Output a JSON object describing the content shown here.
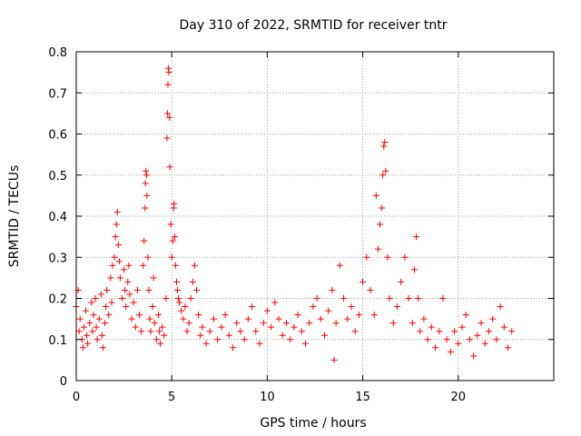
{
  "chart_data": {
    "type": "scatter",
    "title": "Day 310 of 2022, SRMTID for receiver tntr",
    "xlabel": "GPS time / hours",
    "ylabel": "SRMTID / TECUs",
    "xlim": [
      0,
      25
    ],
    "ylim": [
      0,
      0.8
    ],
    "xticks": [
      0,
      5,
      10,
      15,
      20
    ],
    "xtick_labels": [
      "0",
      "5",
      "10",
      "15",
      "20"
    ],
    "yticks": [
      0,
      0.1,
      0.2,
      0.3,
      0.4,
      0.5,
      0.6,
      0.7,
      0.8
    ],
    "ytick_labels": [
      "0",
      "0.1",
      "0.2",
      "0.3",
      "0.4",
      "0.5",
      "0.6",
      "0.7",
      "0.8"
    ],
    "grid": true,
    "marker": "plus",
    "color": "#ff0000",
    "series": [
      {
        "name": "SRMTID",
        "points": [
          [
            0.0,
            0.18
          ],
          [
            0.1,
            0.22
          ],
          [
            0.15,
            0.12
          ],
          [
            0.2,
            0.15
          ],
          [
            0.3,
            0.1
          ],
          [
            0.35,
            0.08
          ],
          [
            0.4,
            0.13
          ],
          [
            0.5,
            0.17
          ],
          [
            0.55,
            0.11
          ],
          [
            0.6,
            0.09
          ],
          [
            0.7,
            0.14
          ],
          [
            0.8,
            0.19
          ],
          [
            0.85,
            0.12
          ],
          [
            0.9,
            0.16
          ],
          [
            1.0,
            0.2
          ],
          [
            1.05,
            0.13
          ],
          [
            1.1,
            0.1
          ],
          [
            1.2,
            0.15
          ],
          [
            1.3,
            0.21
          ],
          [
            1.35,
            0.11
          ],
          [
            1.4,
            0.08
          ],
          [
            1.5,
            0.14
          ],
          [
            1.55,
            0.18
          ],
          [
            1.6,
            0.22
          ],
          [
            1.7,
            0.16
          ],
          [
            1.8,
            0.25
          ],
          [
            1.85,
            0.19
          ],
          [
            1.9,
            0.28
          ],
          [
            2.0,
            0.3
          ],
          [
            2.05,
            0.35
          ],
          [
            2.1,
            0.38
          ],
          [
            2.15,
            0.41
          ],
          [
            2.2,
            0.33
          ],
          [
            2.25,
            0.29
          ],
          [
            2.3,
            0.25
          ],
          [
            2.4,
            0.2
          ],
          [
            2.5,
            0.27
          ],
          [
            2.55,
            0.22
          ],
          [
            2.6,
            0.18
          ],
          [
            2.7,
            0.24
          ],
          [
            2.75,
            0.28
          ],
          [
            2.8,
            0.21
          ],
          [
            2.9,
            0.15
          ],
          [
            3.0,
            0.19
          ],
          [
            3.1,
            0.13
          ],
          [
            3.2,
            0.22
          ],
          [
            3.3,
            0.16
          ],
          [
            3.4,
            0.12
          ],
          [
            3.5,
            0.28
          ],
          [
            3.55,
            0.34
          ],
          [
            3.6,
            0.42
          ],
          [
            3.62,
            0.48
          ],
          [
            3.65,
            0.51
          ],
          [
            3.68,
            0.5
          ],
          [
            3.7,
            0.45
          ],
          [
            3.75,
            0.3
          ],
          [
            3.8,
            0.22
          ],
          [
            3.85,
            0.15
          ],
          [
            3.9,
            0.12
          ],
          [
            4.0,
            0.18
          ],
          [
            4.05,
            0.25
          ],
          [
            4.1,
            0.14
          ],
          [
            4.2,
            0.1
          ],
          [
            4.3,
            0.16
          ],
          [
            4.35,
            0.12
          ],
          [
            4.4,
            0.09
          ],
          [
            4.5,
            0.13
          ],
          [
            4.6,
            0.11
          ],
          [
            4.7,
            0.2
          ],
          [
            4.75,
            0.59
          ],
          [
            4.78,
            0.65
          ],
          [
            4.8,
            0.72
          ],
          [
            4.82,
            0.76
          ],
          [
            4.85,
            0.75
          ],
          [
            4.88,
            0.64
          ],
          [
            4.9,
            0.52
          ],
          [
            4.95,
            0.38
          ],
          [
            5.0,
            0.3
          ],
          [
            5.05,
            0.34
          ],
          [
            5.1,
            0.42
          ],
          [
            5.12,
            0.43
          ],
          [
            5.15,
            0.35
          ],
          [
            5.2,
            0.28
          ],
          [
            5.25,
            0.24
          ],
          [
            5.3,
            0.22
          ],
          [
            5.35,
            0.2
          ],
          [
            5.4,
            0.19
          ],
          [
            5.5,
            0.17
          ],
          [
            5.6,
            0.15
          ],
          [
            5.7,
            0.18
          ],
          [
            5.8,
            0.12
          ],
          [
            5.9,
            0.14
          ],
          [
            6.0,
            0.2
          ],
          [
            6.1,
            0.24
          ],
          [
            6.2,
            0.28
          ],
          [
            6.3,
            0.22
          ],
          [
            6.4,
            0.16
          ],
          [
            6.5,
            0.11
          ],
          [
            6.6,
            0.13
          ],
          [
            6.8,
            0.09
          ],
          [
            7.0,
            0.12
          ],
          [
            7.2,
            0.15
          ],
          [
            7.4,
            0.1
          ],
          [
            7.6,
            0.13
          ],
          [
            7.8,
            0.16
          ],
          [
            8.0,
            0.11
          ],
          [
            8.2,
            0.08
          ],
          [
            8.4,
            0.14
          ],
          [
            8.6,
            0.12
          ],
          [
            8.8,
            0.1
          ],
          [
            9.0,
            0.15
          ],
          [
            9.2,
            0.18
          ],
          [
            9.4,
            0.12
          ],
          [
            9.6,
            0.09
          ],
          [
            9.8,
            0.14
          ],
          [
            10.0,
            0.17
          ],
          [
            10.2,
            0.13
          ],
          [
            10.4,
            0.19
          ],
          [
            10.6,
            0.15
          ],
          [
            10.8,
            0.11
          ],
          [
            11.0,
            0.14
          ],
          [
            11.2,
            0.1
          ],
          [
            11.4,
            0.13
          ],
          [
            11.6,
            0.16
          ],
          [
            11.8,
            0.12
          ],
          [
            12.0,
            0.09
          ],
          [
            12.2,
            0.14
          ],
          [
            12.4,
            0.18
          ],
          [
            12.6,
            0.2
          ],
          [
            12.8,
            0.15
          ],
          [
            13.0,
            0.11
          ],
          [
            13.2,
            0.17
          ],
          [
            13.4,
            0.22
          ],
          [
            13.5,
            0.05
          ],
          [
            13.6,
            0.14
          ],
          [
            13.8,
            0.28
          ],
          [
            14.0,
            0.2
          ],
          [
            14.2,
            0.15
          ],
          [
            14.4,
            0.18
          ],
          [
            14.6,
            0.12
          ],
          [
            14.8,
            0.16
          ],
          [
            15.0,
            0.24
          ],
          [
            15.2,
            0.3
          ],
          [
            15.4,
            0.22
          ],
          [
            15.6,
            0.16
          ],
          [
            15.7,
            0.45
          ],
          [
            15.8,
            0.32
          ],
          [
            15.9,
            0.38
          ],
          [
            16.0,
            0.42
          ],
          [
            16.05,
            0.5
          ],
          [
            16.1,
            0.57
          ],
          [
            16.15,
            0.58
          ],
          [
            16.2,
            0.51
          ],
          [
            16.3,
            0.3
          ],
          [
            16.4,
            0.2
          ],
          [
            16.6,
            0.14
          ],
          [
            16.8,
            0.18
          ],
          [
            17.0,
            0.24
          ],
          [
            17.2,
            0.3
          ],
          [
            17.4,
            0.2
          ],
          [
            17.6,
            0.14
          ],
          [
            17.7,
            0.27
          ],
          [
            17.8,
            0.35
          ],
          [
            17.9,
            0.2
          ],
          [
            18.0,
            0.12
          ],
          [
            18.2,
            0.15
          ],
          [
            18.4,
            0.1
          ],
          [
            18.6,
            0.13
          ],
          [
            18.8,
            0.08
          ],
          [
            19.0,
            0.12
          ],
          [
            19.2,
            0.2
          ],
          [
            19.4,
            0.1
          ],
          [
            19.6,
            0.07
          ],
          [
            19.8,
            0.12
          ],
          [
            20.0,
            0.09
          ],
          [
            20.2,
            0.13
          ],
          [
            20.4,
            0.16
          ],
          [
            20.6,
            0.1
          ],
          [
            20.8,
            0.06
          ],
          [
            21.0,
            0.11
          ],
          [
            21.2,
            0.14
          ],
          [
            21.4,
            0.09
          ],
          [
            21.6,
            0.12
          ],
          [
            21.8,
            0.15
          ],
          [
            22.0,
            0.1
          ],
          [
            22.2,
            0.18
          ],
          [
            22.4,
            0.13
          ],
          [
            22.6,
            0.08
          ],
          [
            22.8,
            0.12
          ]
        ]
      }
    ]
  }
}
